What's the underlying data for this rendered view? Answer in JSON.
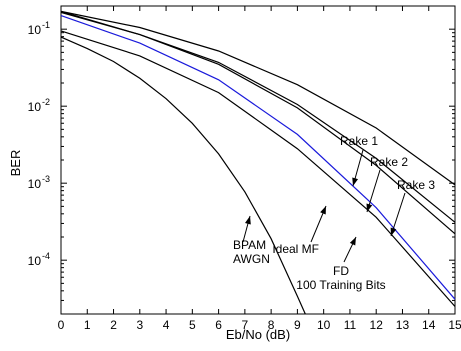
{
  "chart_data": {
    "type": "line",
    "title": "",
    "xlabel": "Eb/No (dB)",
    "ylabel": "BER",
    "xlim": [
      0,
      15
    ],
    "ylim": [
      2e-05,
      0.2
    ],
    "yscale": "log",
    "grid": false,
    "x_ticks": [
      "0",
      "1",
      "2",
      "3",
      "4",
      "5",
      "6",
      "7",
      "8",
      "9",
      "10",
      "11",
      "12",
      "13",
      "14",
      "15"
    ],
    "y_ticks": [
      {
        "value": 0.1,
        "mantissa": "10",
        "exponent": "-1"
      },
      {
        "value": 0.01,
        "mantissa": "10",
        "exponent": "-2"
      },
      {
        "value": 0.001,
        "mantissa": "10",
        "exponent": "-3"
      },
      {
        "value": 0.0001,
        "mantissa": "10",
        "exponent": "-4"
      }
    ],
    "series": [
      {
        "name": "Rake 1",
        "color": "#000000",
        "x": [
          0,
          3,
          6,
          9,
          12,
          15
        ],
        "y": [
          0.17,
          0.105,
          0.052,
          0.019,
          0.0052,
          0.00095
        ]
      },
      {
        "name": "Rake 2",
        "color": "#000000",
        "x": [
          0,
          3,
          6,
          9,
          12,
          15
        ],
        "y": [
          0.17,
          0.085,
          0.037,
          0.0105,
          0.0021,
          0.00031
        ]
      },
      {
        "name": "Rake 3",
        "color": "#000000",
        "x": [
          0,
          3,
          6,
          9,
          12,
          15
        ],
        "y": [
          0.165,
          0.085,
          0.035,
          0.0095,
          0.0017,
          0.00022
        ]
      },
      {
        "name": "Ideal MF",
        "color": "#000000",
        "x": [
          0,
          3,
          6,
          9,
          12,
          15
        ],
        "y": [
          0.095,
          0.045,
          0.015,
          0.0028,
          0.00036,
          2.5e-05
        ]
      },
      {
        "name": "FD 100 Training Bits",
        "color": "#1a1adb",
        "x": [
          0,
          3,
          6,
          9,
          12,
          15
        ],
        "y": [
          0.15,
          0.066,
          0.022,
          0.0043,
          0.00048,
          3.1e-05
        ]
      },
      {
        "name": "BPAM AWGN",
        "color": "#000000",
        "x": [
          0,
          1,
          2,
          3,
          4,
          5,
          6,
          7,
          8,
          9,
          9.3
        ],
        "y": [
          0.079,
          0.056,
          0.038,
          0.023,
          0.0125,
          0.006,
          0.0024,
          0.00077,
          0.00019,
          3.4e-05,
          2e-05
        ]
      }
    ],
    "annotations": [
      {
        "id": "rake1",
        "lines": [
          "Rake 1"
        ]
      },
      {
        "id": "rake2",
        "lines": [
          "Rake 2"
        ]
      },
      {
        "id": "rake3",
        "lines": [
          "Rake 3"
        ]
      },
      {
        "id": "idealmf",
        "lines": [
          "Ideal MF"
        ]
      },
      {
        "id": "fd",
        "lines": [
          "FD",
          "100 Training Bits"
        ]
      },
      {
        "id": "bpam",
        "lines": [
          "BPAM",
          "AWGN"
        ]
      }
    ]
  }
}
